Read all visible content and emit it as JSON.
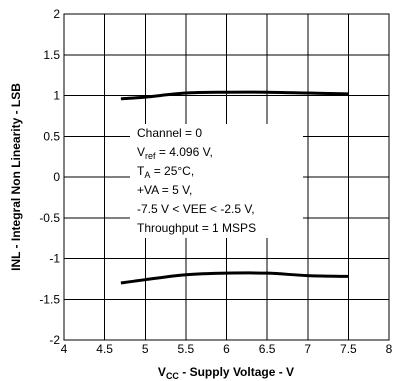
{
  "chart_data": {
    "type": "line",
    "xlabel": {
      "main": "V",
      "sub": "CC",
      "rest": " - Supply Voltage -  V"
    },
    "ylabel": "INL - Integral Non Linearity - LSB",
    "xlim": [
      4,
      8
    ],
    "ylim": [
      -2,
      2
    ],
    "x_ticks": [
      "4",
      "4.5",
      "5",
      "5.5",
      "6",
      "6.5",
      "7",
      "7.5",
      "8"
    ],
    "y_ticks": [
      "2",
      "1.5",
      "1",
      "0.5",
      "0",
      "-0.5",
      "-1",
      "-1.5",
      "-2"
    ],
    "grid": true,
    "series": [
      {
        "x": [
          4.7,
          5.0,
          5.5,
          6.0,
          6.5,
          7.0,
          7.5
        ],
        "values": [
          0.96,
          0.98,
          1.03,
          1.04,
          1.04,
          1.03,
          1.02
        ]
      },
      {
        "x": [
          4.7,
          5.0,
          5.5,
          6.0,
          6.5,
          7.0,
          7.5
        ],
        "values": [
          -1.3,
          -1.26,
          -1.2,
          -1.18,
          -1.18,
          -1.21,
          -1.22
        ]
      }
    ],
    "annotation": {
      "line1": "Channel = 0",
      "line2": {
        "main": "V",
        "sub": "ref",
        "rest": " = 4.096 V,"
      },
      "line3": {
        "main": "T",
        "sub": "A",
        "rest": " = 25°C,"
      },
      "line4": "+VA = 5 V,",
      "line5": "-7.5 V < VEE < -2.5 V,",
      "line6": "Throughput = 1 MSPS"
    }
  }
}
